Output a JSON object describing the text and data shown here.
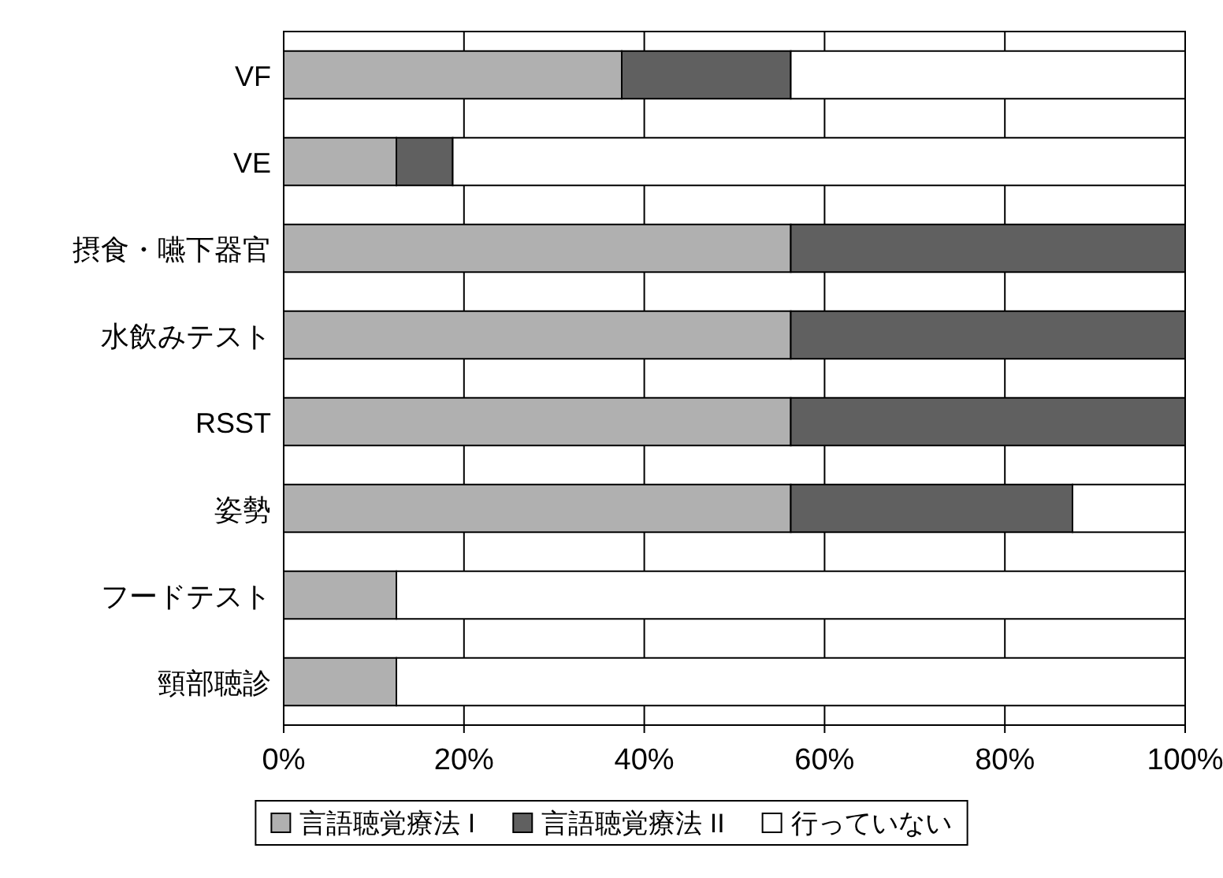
{
  "chart_data": {
    "type": "bar",
    "orientation": "horizontal",
    "stacked": true,
    "categories": [
      "VF",
      "VE",
      "摂食・嚥下器官",
      "水飲みテスト",
      "RSST",
      "姿勢",
      "フードテスト",
      "頸部聴診"
    ],
    "series": [
      {
        "name": "言語聴覚療法 I",
        "color": "#b0b0b0",
        "values": [
          37.5,
          12.5,
          56.25,
          56.25,
          56.25,
          56.25,
          12.5,
          12.5
        ]
      },
      {
        "name": "言語聴覚療法 II",
        "color": "#606060",
        "values": [
          18.75,
          6.25,
          43.75,
          43.75,
          43.75,
          31.25,
          0,
          0
        ]
      },
      {
        "name": "行っていない",
        "color": "#ffffff",
        "values": [
          43.75,
          81.25,
          0,
          0,
          0,
          12.5,
          87.5,
          87.5
        ]
      }
    ],
    "xlim": [
      0,
      100
    ],
    "xticks": [
      {
        "value": 0,
        "label": "0%"
      },
      {
        "value": 20,
        "label": "20%"
      },
      {
        "value": 40,
        "label": "40%"
      },
      {
        "value": 60,
        "label": "60%"
      },
      {
        "value": 80,
        "label": "80%"
      },
      {
        "value": 100,
        "label": "100%"
      }
    ],
    "grid": "x",
    "legend": "bottom"
  }
}
